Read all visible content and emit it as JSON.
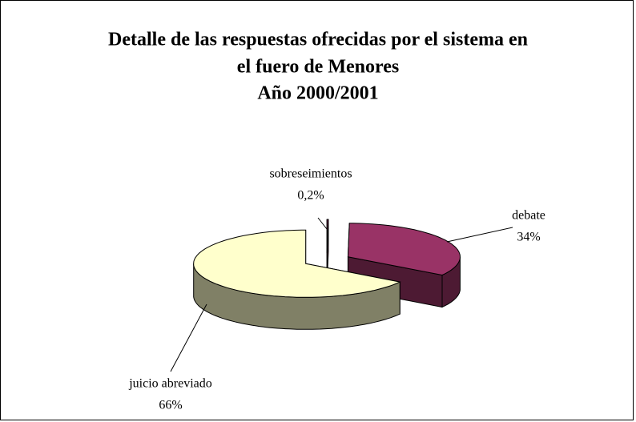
{
  "chart_data": {
    "type": "pie3d",
    "title": [
      "Detalle de las respuestas ofrecidas por el sistema en",
      "el fuero de Menores",
      "Año 2000/2001"
    ],
    "categories": [
      "sobreseimientos",
      "debate",
      "juicio abreviado"
    ],
    "values": [
      0.2,
      34,
      66
    ],
    "value_labels": [
      "0,2%",
      "34%",
      "66%"
    ],
    "colors": [
      "#993366",
      "#993366",
      "#ffffcc"
    ],
    "side_colors": [
      "#4d1a33",
      "#4d1a33",
      "#808066"
    ]
  }
}
